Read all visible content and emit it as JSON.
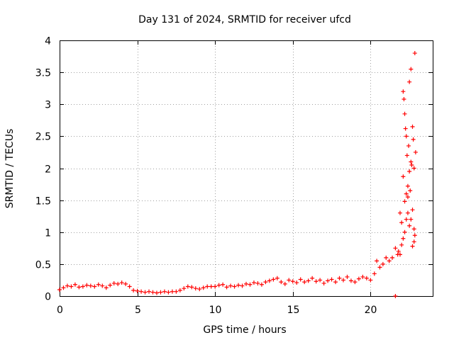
{
  "chart_data": {
    "type": "scatter",
    "title": "Day 131 of 2024, SRMTID for receiver ufcd",
    "xlabel": "GPS time / hours",
    "ylabel": "SRMTID / TECUs",
    "xlim": [
      0,
      24
    ],
    "ylim": [
      0,
      4
    ],
    "xticks": [
      0,
      5,
      10,
      15,
      20
    ],
    "xtick_labels": [
      "0",
      "5",
      "10",
      "15",
      "20"
    ],
    "yticks": [
      0,
      0.5,
      1,
      1.5,
      2,
      2.5,
      3,
      3.5,
      4
    ],
    "ytick_labels": [
      "0",
      "0.5",
      "1",
      "1.5",
      "2",
      "2.5",
      "3",
      "3.5",
      "4"
    ],
    "grid": true,
    "marker": "+",
    "series": [
      {
        "name": "SRMTID",
        "color": "#ff0000",
        "x": [
          0.0,
          0.25,
          0.5,
          0.75,
          1.0,
          1.25,
          1.5,
          1.75,
          2.0,
          2.25,
          2.5,
          2.75,
          3.0,
          3.25,
          3.5,
          3.75,
          4.0,
          4.25,
          4.5,
          4.75,
          5.0,
          5.25,
          5.5,
          5.75,
          6.0,
          6.25,
          6.5,
          6.75,
          7.0,
          7.25,
          7.5,
          7.75,
          8.0,
          8.25,
          8.5,
          8.75,
          9.0,
          9.25,
          9.5,
          9.75,
          10.0,
          10.25,
          10.5,
          10.75,
          11.0,
          11.25,
          11.5,
          11.75,
          12.0,
          12.25,
          12.5,
          12.75,
          13.0,
          13.25,
          13.5,
          13.75,
          14.0,
          14.25,
          14.5,
          14.75,
          15.0,
          15.25,
          15.5,
          15.75,
          16.0,
          16.25,
          16.5,
          16.75,
          17.0,
          17.25,
          17.5,
          17.75,
          18.0,
          18.25,
          18.5,
          18.75,
          19.0,
          19.25,
          19.5,
          19.75,
          20.0,
          20.25,
          20.4,
          20.6,
          20.8,
          21.0,
          21.2,
          21.4,
          21.6,
          21.8,
          21.9,
          22.0,
          22.1,
          22.2,
          22.3,
          22.4,
          22.5,
          22.6,
          22.7,
          22.8,
          22.85,
          21.6,
          21.75,
          21.9,
          22.0,
          22.1,
          22.15,
          22.2,
          22.25,
          22.3,
          22.35,
          22.4,
          22.45,
          22.5,
          22.55,
          22.6,
          22.65,
          22.7,
          22.75,
          22.8,
          22.85,
          22.9,
          22.1,
          22.2,
          22.3,
          22.4,
          22.5,
          22.6,
          22.7,
          22.8
        ],
        "y": [
          0.1,
          0.13,
          0.16,
          0.15,
          0.18,
          0.14,
          0.15,
          0.17,
          0.16,
          0.15,
          0.18,
          0.16,
          0.13,
          0.17,
          0.2,
          0.19,
          0.21,
          0.19,
          0.15,
          0.09,
          0.08,
          0.07,
          0.06,
          0.07,
          0.06,
          0.05,
          0.06,
          0.07,
          0.06,
          0.07,
          0.07,
          0.09,
          0.12,
          0.15,
          0.14,
          0.12,
          0.11,
          0.13,
          0.15,
          0.15,
          0.15,
          0.17,
          0.18,
          0.14,
          0.16,
          0.15,
          0.17,
          0.16,
          0.19,
          0.18,
          0.21,
          0.2,
          0.18,
          0.22,
          0.24,
          0.26,
          0.28,
          0.22,
          0.19,
          0.25,
          0.23,
          0.21,
          0.26,
          0.22,
          0.24,
          0.28,
          0.23,
          0.25,
          0.2,
          0.24,
          0.26,
          0.22,
          0.28,
          0.25,
          0.3,
          0.24,
          0.22,
          0.27,
          0.3,
          0.28,
          0.25,
          0.35,
          0.55,
          0.45,
          0.5,
          0.6,
          0.55,
          0.6,
          0.75,
          0.7,
          0.65,
          0.8,
          0.9,
          1.0,
          1.2,
          1.3,
          1.1,
          1.2,
          1.35,
          1.05,
          0.95,
          0.0,
          0.65,
          1.3,
          1.15,
          3.2,
          3.08,
          2.85,
          2.62,
          2.5,
          2.2,
          1.72,
          2.35,
          1.95,
          1.65,
          2.1,
          2.05,
          2.65,
          2.45,
          2.0,
          3.8,
          2.25,
          1.87,
          1.48,
          1.6,
          1.55,
          3.35,
          3.55,
          0.78,
          0.85
        ]
      }
    ]
  }
}
